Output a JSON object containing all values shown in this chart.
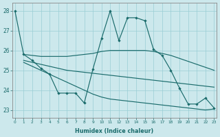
{
  "background_color": "#cce8ec",
  "grid_color": "#99cdd4",
  "line_color": "#1a6b6b",
  "xlabel": "Humidex (Indice chaleur)",
  "xlim": [
    -0.3,
    23.3
  ],
  "ylim": [
    22.6,
    28.4
  ],
  "yticks": [
    23,
    24,
    25,
    26,
    27,
    28
  ],
  "xticks": [
    0,
    1,
    2,
    3,
    4,
    5,
    6,
    7,
    8,
    9,
    10,
    11,
    12,
    13,
    14,
    15,
    16,
    17,
    18,
    19,
    20,
    21,
    22,
    23
  ],
  "s1_x": [
    0,
    1,
    2,
    3,
    4,
    5,
    6,
    7,
    8,
    9,
    10,
    11,
    12,
    13,
    14,
    15,
    16,
    17,
    18,
    19,
    20,
    21,
    22,
    23
  ],
  "s1_y": [
    28.0,
    25.8,
    25.5,
    25.1,
    24.8,
    23.85,
    23.85,
    23.85,
    23.35,
    25.05,
    26.6,
    28.0,
    26.5,
    27.65,
    27.65,
    27.5,
    26.05,
    25.75,
    25.0,
    24.1,
    23.3,
    23.3,
    23.6,
    23.1
  ],
  "s2_x": [
    1,
    2,
    3,
    4,
    5,
    6,
    7,
    8,
    9,
    10,
    11,
    12,
    13,
    14,
    15,
    16,
    17,
    18,
    19,
    20,
    21,
    22,
    23
  ],
  "s2_y": [
    25.8,
    25.75,
    25.7,
    25.7,
    25.7,
    25.7,
    25.75,
    25.8,
    25.85,
    25.95,
    26.0,
    26.0,
    26.0,
    26.0,
    26.0,
    25.95,
    25.85,
    25.75,
    25.6,
    25.45,
    25.3,
    25.15,
    25.0
  ],
  "s3_x": [
    1,
    2,
    3,
    4,
    5,
    6,
    7,
    8,
    9,
    10,
    11,
    12,
    13,
    14,
    15,
    16,
    17,
    18,
    19,
    20,
    21,
    22,
    23
  ],
  "s3_y": [
    25.5,
    25.4,
    25.3,
    25.2,
    25.1,
    25.0,
    24.95,
    24.9,
    24.85,
    24.8,
    24.75,
    24.7,
    24.65,
    24.6,
    24.55,
    24.5,
    24.45,
    24.4,
    24.35,
    24.3,
    24.25,
    24.2,
    24.15
  ],
  "s4_x": [
    1,
    2,
    3,
    4,
    5,
    6,
    7,
    8,
    9,
    10,
    11,
    12,
    13,
    14,
    15,
    16,
    17,
    18,
    19,
    20,
    21,
    22,
    23
  ],
  "s4_y": [
    25.4,
    25.2,
    25.0,
    24.8,
    24.6,
    24.4,
    24.2,
    24.0,
    23.8,
    23.65,
    23.55,
    23.5,
    23.45,
    23.4,
    23.35,
    23.3,
    23.25,
    23.2,
    23.15,
    23.1,
    23.05,
    23.0,
    23.05
  ]
}
